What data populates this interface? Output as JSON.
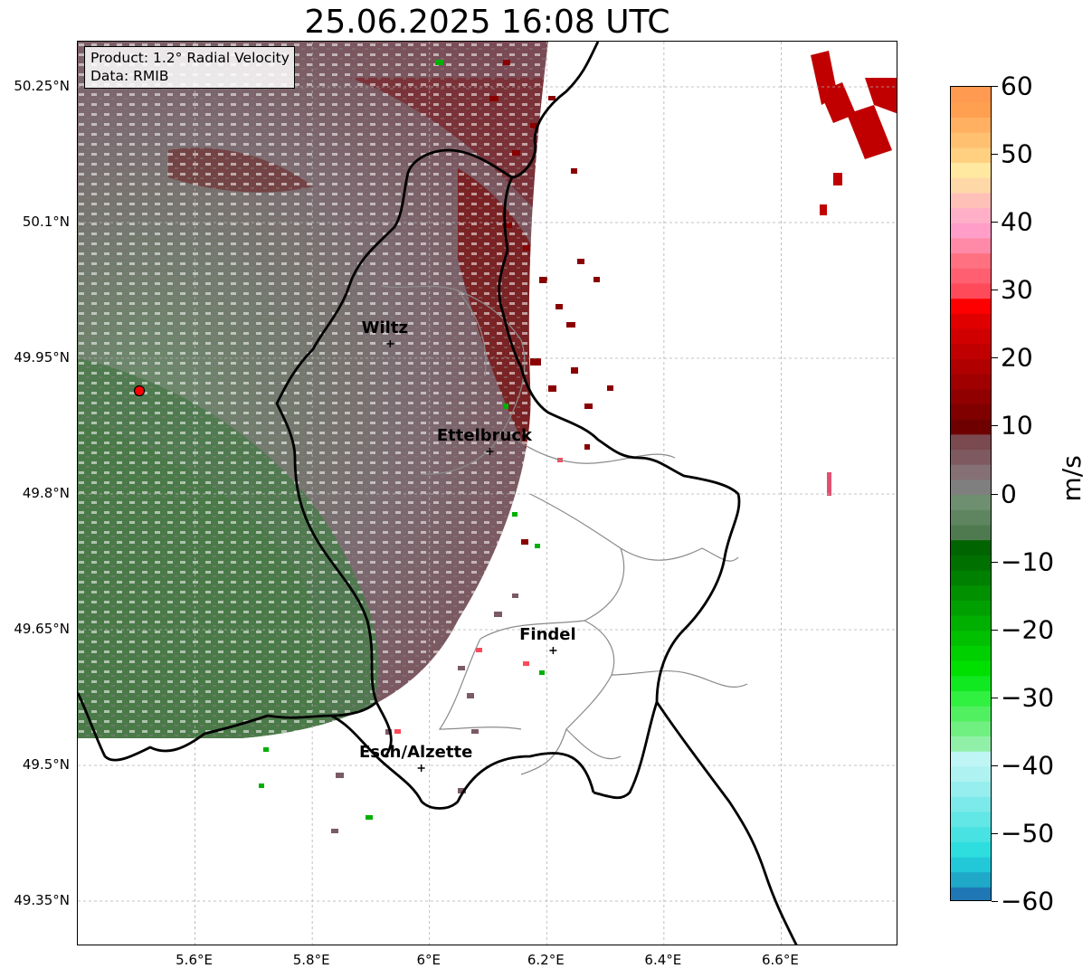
{
  "title": "25.06.2025 16:08 UTC",
  "info": {
    "product": "Product: 1.2° Radial Velocity",
    "data_source": "Data: RMIB"
  },
  "latitude_ticks": [
    "50.25°N",
    "50.1°N",
    "49.95°N",
    "49.8°N",
    "49.65°N",
    "49.5°N",
    "49.35°N"
  ],
  "longitude_ticks": [
    "5.6°E",
    "5.8°E",
    "6°E",
    "6.2°E",
    "6.4°E",
    "6.6°E"
  ],
  "cities": [
    {
      "name": "Wiltz",
      "lon": 5.933,
      "lat": 49.966
    },
    {
      "name": "Ettelbruck",
      "lon": 6.103,
      "lat": 49.847
    },
    {
      "name": "Findel",
      "lon": 6.211,
      "lat": 49.627
    },
    {
      "name": "Esch/Alzette",
      "lon": 5.986,
      "lat": 49.497
    }
  ],
  "radar_site": {
    "lon": 5.505,
    "lat": 49.914
  },
  "extent": {
    "lon": [
      5.4,
      6.8
    ],
    "lat": [
      49.3,
      50.3
    ]
  },
  "colorbar": {
    "label": "m/s",
    "min": -60,
    "max": 60,
    "ticks": [
      "60",
      "50",
      "40",
      "30",
      "20",
      "10",
      "0",
      "−10",
      "−20",
      "−30",
      "−40",
      "−50",
      "−60"
    ],
    "colors": [
      "#1f77b4",
      "#1fa8c8",
      "#22c8d8",
      "#2edede",
      "#48e2e2",
      "#62e6e6",
      "#7ceaea",
      "#96eeee",
      "#aef2f2",
      "#bff5f5",
      "#90f0a8",
      "#70f080",
      "#50f060",
      "#30f040",
      "#10e820",
      "#00e000",
      "#00d000",
      "#00c000",
      "#00b000",
      "#00a000",
      "#009000",
      "#008000",
      "#007000",
      "#006400",
      "#4f7a4f",
      "#5e8560",
      "#6e8f70",
      "#7f7f7f",
      "#857075",
      "#7e5a60",
      "#7a4a50",
      "#6e0000",
      "#800000",
      "#900000",
      "#a00000",
      "#b00000",
      "#c00000",
      "#d00000",
      "#e00000",
      "#ff0000",
      "#ff4a5a",
      "#ff5f70",
      "#ff7080",
      "#ff8aa8",
      "#ff9ec8",
      "#ffb0c8",
      "#ffc0b8",
      "#ffd8a8",
      "#ffe8a0",
      "#ffd080",
      "#ffc070",
      "#ffb060",
      "#ffa050",
      "#ff9a50"
    ]
  }
}
